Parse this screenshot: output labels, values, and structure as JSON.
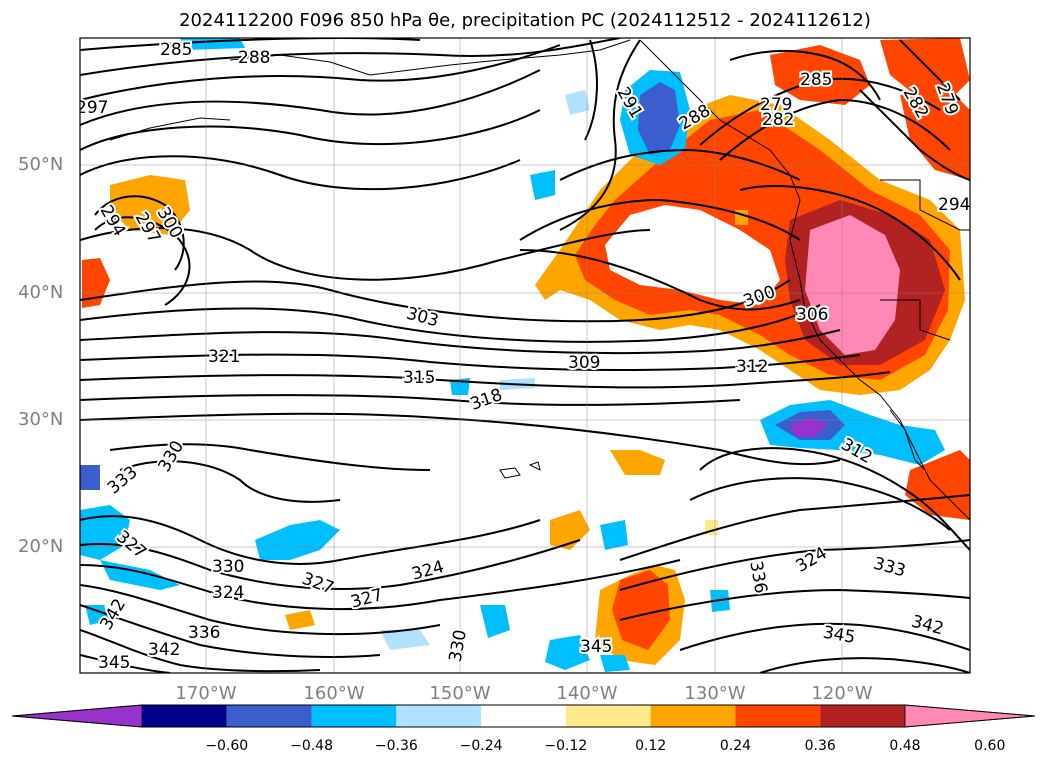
{
  "title": "2024112200 F096 850 hPa θe, precipitation PC (2024112512 - 2024112612)",
  "map": {
    "lon_labels": [
      "170°W",
      "160°W",
      "150°W",
      "140°W",
      "130°W",
      "120°W"
    ],
    "lat_labels": [
      "50°N",
      "40°N",
      "30°N",
      "20°N"
    ],
    "contour_labels": [
      "285",
      "288",
      "297",
      "294",
      "297",
      "300",
      "291",
      "279",
      "285",
      "282",
      "288",
      "282",
      "279",
      "294",
      "303",
      "300",
      "306",
      "321",
      "309",
      "315",
      "312",
      "318",
      "312",
      "330",
      "333",
      "327",
      "330",
      "324",
      "327",
      "324",
      "327",
      "324",
      "336",
      "333",
      "342",
      "336",
      "342",
      "330",
      "345",
      "345",
      "342",
      "345"
    ]
  },
  "colorbar": {
    "colors": [
      "#9932cc",
      "#00008b",
      "#3a5fcd",
      "#00bfff",
      "#b0e2ff",
      "#ffffff",
      "#fdeb8b",
      "#ffa500",
      "#ff4500",
      "#b22222",
      "#ff89b4"
    ],
    "tick_labels": [
      "−0.60",
      "−0.48",
      "−0.36",
      "−0.24",
      "−0.12",
      "0.12",
      "0.24",
      "0.36",
      "0.48",
      "0.60"
    ]
  }
}
